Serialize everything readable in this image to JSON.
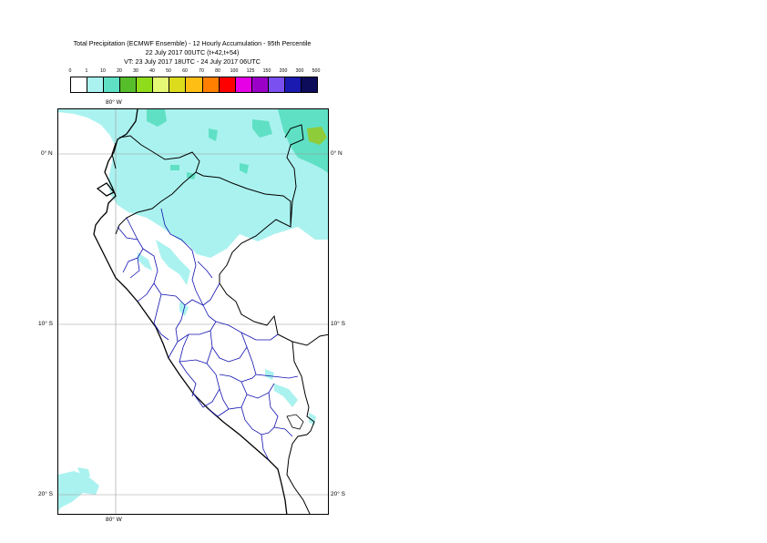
{
  "title": {
    "line1": "Total Precipitation (ECMWF Ensemble) - 12 Hourly Accumulation - 95th Percentile",
    "line2": "22 July 2017 00UTC (t+42,t+54)",
    "line3": "VT: 23 July 2017 18UTC - 24 July 2017 06UTC"
  },
  "legend": {
    "ticks": [
      "0",
      "1",
      "10",
      "20",
      "30",
      "40",
      "50",
      "60",
      "70",
      "80",
      "100",
      "125",
      "150",
      "200",
      "300",
      "500"
    ],
    "colors": [
      "#ffffff",
      "#aaf2ef",
      "#5fe0c4",
      "#56be2b",
      "#8fdc1a",
      "#e5f876",
      "#dcdc1c",
      "#ffbe14",
      "#ff7f00",
      "#ff0000",
      "#e600e6",
      "#9a00c8",
      "#7a50f0",
      "#1a1ab0",
      "#0c0c5a"
    ]
  },
  "axes": {
    "lon_top": "80° W",
    "lon_bottom": "80° W",
    "lat_0_left": "0° N",
    "lat_0_right": "0° N",
    "lat_10_left": "10° S",
    "lat_10_right": "10° S",
    "lat_20_left": "20° S",
    "lat_20_right": "20° S"
  },
  "colors": {
    "coast": "#000000",
    "admin_borders": "#1010b0",
    "gridlines": "#999999",
    "precip_light": "#aaf2ef",
    "precip_medium": "#5fe0c4",
    "precip_heavy": "#8fcc3a"
  }
}
